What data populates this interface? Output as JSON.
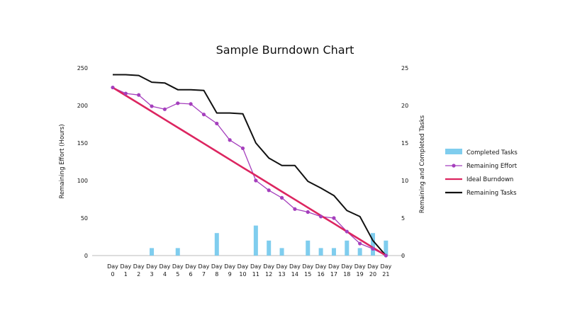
{
  "chart_data": {
    "type": "combo",
    "title": "Sample Burndown Chart",
    "ylabel_left": "Remaining Effort (Hours)",
    "ylabel_right": "Remaining and Completed Tasks",
    "ylim_left": [
      0,
      250
    ],
    "ylim_right": [
      0,
      25
    ],
    "yticks_left": [
      "0",
      "50",
      "100",
      "150",
      "200",
      "250"
    ],
    "yticks_right": [
      "0",
      "5",
      "10",
      "15",
      "20",
      "25"
    ],
    "categories": [
      [
        "Day",
        "0"
      ],
      [
        "Day",
        "1"
      ],
      [
        "Day",
        "2"
      ],
      [
        "Day",
        "3"
      ],
      [
        "Day",
        "4"
      ],
      [
        "Day",
        "5"
      ],
      [
        "Day",
        "6"
      ],
      [
        "Day",
        "7"
      ],
      [
        "Day",
        "8"
      ],
      [
        "Day",
        "9"
      ],
      [
        "Day",
        "10"
      ],
      [
        "Day",
        "11"
      ],
      [
        "Day",
        "12"
      ],
      [
        "Day",
        "13"
      ],
      [
        "Day",
        "14"
      ],
      [
        "Day",
        "15"
      ],
      [
        "Day",
        "16"
      ],
      [
        "Day",
        "17"
      ],
      [
        "Day",
        "18"
      ],
      [
        "Day",
        "19"
      ],
      [
        "Day",
        "20"
      ],
      [
        "Day",
        "21"
      ]
    ],
    "series": [
      {
        "name": "Completed Tasks",
        "type": "bar",
        "axis": "right",
        "color": "#7fcdee",
        "values": [
          0,
          0,
          0,
          1,
          0,
          1,
          0,
          0,
          3,
          0,
          0,
          4,
          2,
          1,
          0,
          2,
          1,
          1,
          2,
          1,
          3,
          2
        ]
      },
      {
        "name": "Remaining Effort",
        "type": "line-marker",
        "axis": "left",
        "color": "#a53fbd",
        "values": [
          224,
          216,
          214,
          199,
          195,
          203,
          202,
          188,
          176,
          154,
          143,
          100,
          87,
          77,
          62,
          58,
          52,
          50,
          32,
          16,
          9,
          0
        ]
      },
      {
        "name": "Ideal Burndown",
        "type": "line",
        "axis": "left",
        "color": "#dc2560",
        "values": [
          224,
          213.3,
          202.7,
          192,
          181.3,
          170.7,
          160,
          149.3,
          138.7,
          128,
          117.3,
          106.7,
          96,
          85.3,
          74.7,
          64,
          53.3,
          42.7,
          32,
          21.3,
          10.7,
          0
        ]
      },
      {
        "name": "Remaining Tasks",
        "type": "line",
        "axis": "right",
        "color": "#111111",
        "values": [
          24.1,
          24.1,
          24,
          23.1,
          23,
          22.1,
          22.1,
          22,
          19,
          19,
          18.9,
          15,
          13,
          12,
          12,
          9.9,
          9,
          8,
          6,
          5.2,
          2,
          0
        ]
      }
    ],
    "legend_position": "right",
    "grid": false
  }
}
